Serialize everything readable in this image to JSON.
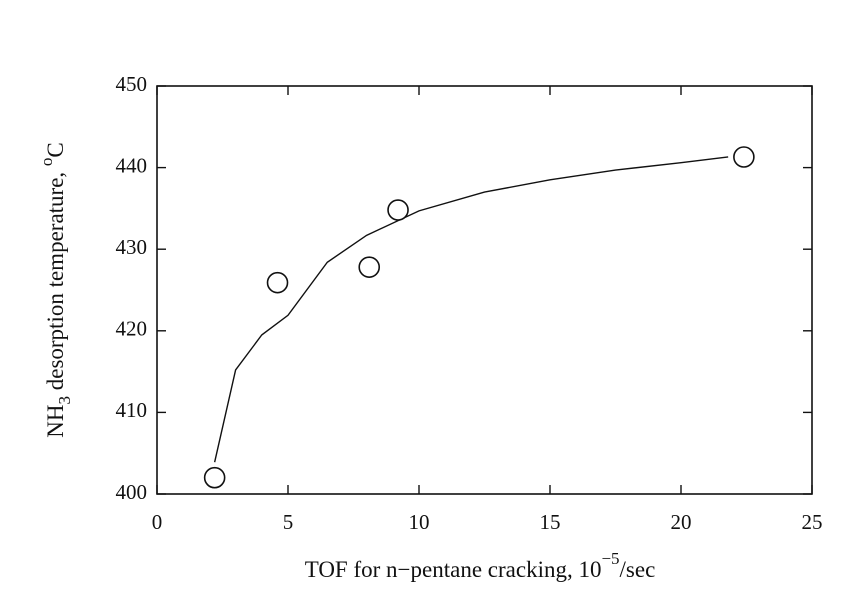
{
  "chart_data": {
    "type": "scatter",
    "x": [
      2.2,
      4.6,
      8.1,
      9.2,
      22.4
    ],
    "values": [
      402,
      425.9,
      427.8,
      434.8,
      441.3
    ],
    "fit": {
      "x": [
        2.2,
        3,
        4,
        5,
        6.5,
        8,
        10,
        12.5,
        15,
        17.5,
        20,
        21.8
      ],
      "values": [
        403.9,
        415.2,
        419.5,
        421.9,
        428.4,
        431.7,
        434.7,
        437,
        438.5,
        439.7,
        440.6,
        441.3
      ]
    },
    "xlabel": {
      "text": "TOF for n−pentane cracking, 10",
      "superscript": "−5",
      "unit": "/sec"
    },
    "ylabel": {
      "text": "NH",
      "subscript": "3",
      "rest": " desorption temperature, ",
      "superscript": "o",
      "unit": "C"
    },
    "xlim": [
      0,
      25
    ],
    "xticks": [
      0,
      5,
      10,
      15,
      20,
      25
    ],
    "ylim": [
      400,
      450
    ],
    "yticks": [
      400,
      410,
      420,
      430,
      440,
      450
    ],
    "grid": false,
    "color": "#111111"
  }
}
